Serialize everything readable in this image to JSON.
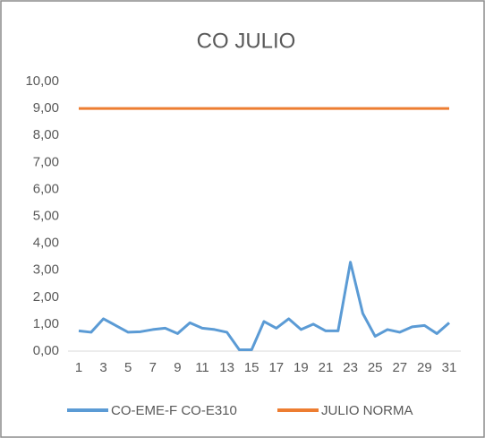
{
  "chart_data": {
    "type": "line",
    "title": "CO JULIO",
    "categories": [
      "1",
      null,
      "3",
      null,
      "5",
      null,
      "7",
      null,
      "9",
      null,
      "11",
      null,
      "13",
      null,
      "15",
      null,
      "17",
      null,
      "19",
      null,
      "21",
      null,
      "23",
      null,
      "25",
      null,
      "27",
      null,
      "29",
      null,
      "31"
    ],
    "series": [
      {
        "name": "CO-EME-F CO-E310",
        "color": "#5b9bd5",
        "values": [
          0.75,
          0.7,
          1.2,
          0.95,
          0.7,
          0.72,
          0.8,
          0.85,
          0.65,
          1.05,
          0.85,
          0.8,
          0.7,
          0.05,
          0.05,
          1.1,
          0.85,
          1.2,
          0.8,
          1.0,
          0.75,
          0.75,
          3.3,
          1.4,
          0.55,
          0.8,
          0.7,
          0.9,
          0.95,
          0.65,
          1.05
        ]
      },
      {
        "name": "JULIO NORMA",
        "color": "#ed7d31",
        "values": [
          9,
          9,
          9,
          9,
          9,
          9,
          9,
          9,
          9,
          9,
          9,
          9,
          9,
          9,
          9,
          9,
          9,
          9,
          9,
          9,
          9,
          9,
          9,
          9,
          9,
          9,
          9,
          9,
          9,
          9,
          9
        ]
      }
    ],
    "ylim": [
      0,
      10
    ],
    "yticks": [
      {
        "value": 0,
        "label": "0,00"
      },
      {
        "value": 1,
        "label": "1,00"
      },
      {
        "value": 2,
        "label": "2,00"
      },
      {
        "value": 3,
        "label": "3,00"
      },
      {
        "value": 4,
        "label": "4,00"
      },
      {
        "value": 5,
        "label": "5,00"
      },
      {
        "value": 6,
        "label": "6,00"
      },
      {
        "value": 7,
        "label": "7,00"
      },
      {
        "value": 8,
        "label": "8,00"
      },
      {
        "value": 9,
        "label": "9,00"
      },
      {
        "value": 10,
        "label": "10,00"
      }
    ],
    "grid": false,
    "legend": "bottom"
  }
}
